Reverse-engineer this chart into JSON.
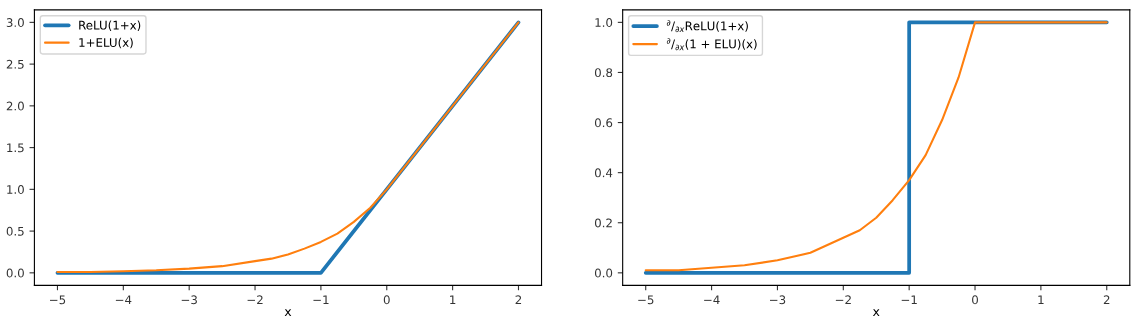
{
  "chart_data": [
    {
      "type": "line",
      "xlabel": "x",
      "legend": "top left",
      "grid": false,
      "xlim": [
        -5.35,
        2.35
      ],
      "ylim": [
        -0.15,
        3.15
      ],
      "xticks": [
        {
          "value": -5,
          "label": "−5"
        },
        {
          "value": -4,
          "label": "−4"
        },
        {
          "value": -3,
          "label": "−3"
        },
        {
          "value": -2,
          "label": "−2"
        },
        {
          "value": -1,
          "label": "−1"
        },
        0,
        1,
        2
      ],
      "yticks": [
        {
          "value": 0,
          "label": "0.0"
        },
        0.5,
        {
          "value": 1,
          "label": "1.0"
        },
        1.5,
        {
          "value": 2,
          "label": "2.0"
        },
        2.5,
        {
          "value": 3,
          "label": "3.0"
        }
      ],
      "series": [
        {
          "name": "ReLU(1+x)",
          "color": "#1f77b4",
          "x": [
            -5,
            -1,
            2
          ],
          "values": [
            0,
            0,
            3
          ]
        },
        {
          "name": "1+ELU(x)",
          "color": "#ff7f0e",
          "x": [
            -5,
            -4.5,
            -4,
            -3.5,
            -3,
            -2.5,
            -2,
            -1.75,
            -1.5,
            -1.25,
            -1,
            -0.75,
            -0.5,
            -0.25,
            0,
            2
          ],
          "values": [
            0.01,
            0.01,
            0.02,
            0.03,
            0.05,
            0.08,
            0.14,
            0.17,
            0.22,
            0.29,
            0.37,
            0.47,
            0.61,
            0.78,
            1.0,
            3.0
          ]
        }
      ]
    },
    {
      "type": "line",
      "xlabel": "x",
      "legend": "top left",
      "grid": false,
      "xlim": [
        -5.35,
        2.35
      ],
      "ylim": [
        -0.05,
        1.05
      ],
      "xticks": [
        {
          "value": -5,
          "label": "−5"
        },
        {
          "value": -4,
          "label": "−4"
        },
        {
          "value": -3,
          "label": "−3"
        },
        {
          "value": -2,
          "label": "−2"
        },
        {
          "value": -1,
          "label": "−1"
        },
        0,
        1,
        2
      ],
      "yticks": [
        {
          "value": 0,
          "label": "0.0"
        },
        0.2,
        0.4,
        0.6,
        0.8,
        {
          "value": 1,
          "label": "1.0"
        }
      ],
      "series": [
        {
          "name": "$^{∂}$/$_{∂x}$ReLU(1+x)",
          "color": "#1f77b4",
          "x": [
            -5,
            -1,
            -1,
            2
          ],
          "values": [
            0,
            0,
            1,
            1
          ]
        },
        {
          "name": "$^{∂}$/$_{∂x}$(1 + ELU)(x)",
          "color": "#ff7f0e",
          "x": [
            -5,
            -4.5,
            -4,
            -3.5,
            -3,
            -2.5,
            -2,
            -1.75,
            -1.5,
            -1.25,
            -1,
            -0.75,
            -0.5,
            -0.25,
            0,
            2
          ],
          "values": [
            0.01,
            0.01,
            0.02,
            0.03,
            0.05,
            0.08,
            0.14,
            0.17,
            0.22,
            0.29,
            0.37,
            0.47,
            0.61,
            0.78,
            1.0,
            1.0
          ]
        }
      ]
    }
  ]
}
